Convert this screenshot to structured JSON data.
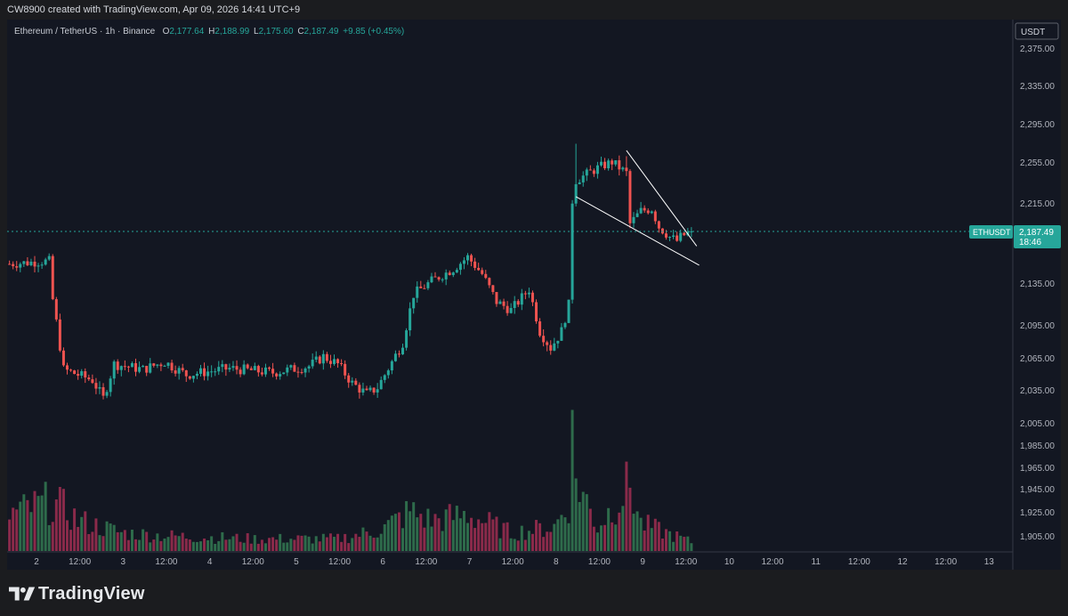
{
  "header": {
    "credit": "CW8900 created with TradingView.com, Apr 09, 2026 14:41 UTC+9"
  },
  "legend": {
    "symbol": "Ethereum / TetherUS · 1h · Binance",
    "open_label": "O",
    "open": "2,177.64",
    "high_label": "H",
    "high": "2,188.99",
    "low_label": "L",
    "low": "2,175.60",
    "close_label": "C",
    "close": "2,187.49",
    "change": "+9.85 (+0.45%)"
  },
  "price_axis": {
    "currency": "USDT",
    "ticks": [
      "2,375.00",
      "2,335.00",
      "2,295.00",
      "2,255.00",
      "2,215.00",
      "2,135.00",
      "2,095.00",
      "2,065.00",
      "2,035.00",
      "2,005.00",
      "1,985.00",
      "1,965.00",
      "1,945.00",
      "1,925.00",
      "1,905.00"
    ]
  },
  "price_label": {
    "symbol": "ETHUSDT",
    "price": "2,187.49",
    "countdown": "18:46"
  },
  "time_axis": {
    "labels": [
      "2",
      "12:00",
      "3",
      "12:00",
      "4",
      "12:00",
      "5",
      "12:00",
      "6",
      "12:00",
      "7",
      "12:00",
      "8",
      "12:00",
      "9",
      "12:00",
      "10",
      "12:00",
      "11",
      "12:00",
      "12",
      "12:00",
      "13"
    ]
  },
  "footer": {
    "brand": "TradingView"
  },
  "colors": {
    "up": "#26a69a",
    "down": "#ef5350",
    "background": "#131722",
    "price_line": "#26a69a",
    "pattern": "#ffffff"
  },
  "chart_data": {
    "type": "candlestick",
    "title": "Ethereum / TetherUS · 1h · Binance",
    "interval": "1h",
    "ylim": [
      1895,
      2385
    ],
    "x_start": "Apr 1 17:00",
    "x_labels": [
      "2",
      "3",
      "4",
      "5",
      "6",
      "7",
      "8",
      "9",
      "10",
      "11",
      "12",
      "13"
    ],
    "ohlc_keypoints": [
      [
        "Apr 1 17:00",
        2155
      ],
      [
        "Apr 2 04:00",
        2158
      ],
      [
        "Apr 2 05:00",
        2120
      ],
      [
        "Apr 2 08:00",
        2055
      ],
      [
        "Apr 2 16:00",
        2045
      ],
      [
        "Apr 2 19:00",
        2028
      ],
      [
        "Apr 2 22:00",
        2060
      ],
      [
        "Apr 3 06:00",
        2055
      ],
      [
        "Apr 3 12:00",
        2062
      ],
      [
        "Apr 3 18:00",
        2050
      ],
      [
        "Apr 4 06:00",
        2056
      ],
      [
        "Apr 4 18:00",
        2052
      ],
      [
        "Apr 5 04:00",
        2058
      ],
      [
        "Apr 5 08:00",
        2067
      ],
      [
        "Apr 5 12:00",
        2060
      ],
      [
        "Apr 5 16:00",
        2042
      ],
      [
        "Apr 5 20:00",
        2032
      ],
      [
        "Apr 5 23:00",
        2038
      ],
      [
        "Apr 6 03:00",
        2062
      ],
      [
        "Apr 6 06:00",
        2080
      ],
      [
        "Apr 6 09:00",
        2125
      ],
      [
        "Apr 6 14:00",
        2138
      ],
      [
        "Apr 6 20:00",
        2150
      ],
      [
        "Apr 7 00:00",
        2162
      ],
      [
        "Apr 7 04:00",
        2145
      ],
      [
        "Apr 7 08:00",
        2118
      ],
      [
        "Apr 7 12:00",
        2110
      ],
      [
        "Apr 7 17:00",
        2130
      ],
      [
        "Apr 7 20:00",
        2090
      ],
      [
        "Apr 7 23:00",
        2075
      ],
      [
        "Apr 8 02:00",
        2090
      ],
      [
        "Apr 8 04:00",
        2115
      ],
      [
        "Apr 8 05:00",
        2218
      ],
      [
        "Apr 8 06:00",
        2238
      ],
      [
        "Apr 8 12:00",
        2250
      ],
      [
        "Apr 8 16:00",
        2256
      ],
      [
        "Apr 8 20:00",
        2245
      ],
      [
        "Apr 8 21:00",
        2195
      ],
      [
        "Apr 9 00:00",
        2208
      ],
      [
        "Apr 9 03:00",
        2210
      ],
      [
        "Apr 9 05:00",
        2192
      ],
      [
        "Apr 9 08:00",
        2182
      ],
      [
        "Apr 9 10:00",
        2178
      ],
      [
        "Apr 9 11:00",
        2182
      ],
      [
        "Apr 9 14:00",
        2187.49
      ]
    ],
    "volume_keypoints": [
      [
        "Apr 1 17:00",
        1.2
      ],
      [
        "Apr 2 04:00",
        1.6
      ],
      [
        "Apr 2 08:00",
        1.4
      ],
      [
        "Apr 2 12:00",
        1.0
      ],
      [
        "Apr 3 00:00",
        0.6
      ],
      [
        "Apr 3 12:00",
        0.5
      ],
      [
        "Apr 4 12:00",
        0.4
      ],
      [
        "Apr 5 12:00",
        0.4
      ],
      [
        "Apr 6 00:00",
        0.7
      ],
      [
        "Apr 6 08:00",
        1.3
      ],
      [
        "Apr 6 14:00",
        1.0
      ],
      [
        "Apr 7 00:00",
        1.2
      ],
      [
        "Apr 7 12:00",
        0.6
      ],
      [
        "Apr 8 00:00",
        0.8
      ],
      [
        "Apr 8 04:00",
        1.6
      ],
      [
        "Apr 8 05:00",
        3.7
      ],
      [
        "Apr 8 06:00",
        2.4
      ],
      [
        "Apr 8 12:00",
        0.8
      ],
      [
        "Apr 8 21:00",
        2.2
      ],
      [
        "Apr 9 00:00",
        0.9
      ],
      [
        "Apr 9 14:00",
        0.3
      ]
    ],
    "falling_wedge": {
      "upper": [
        [
          "Apr 8 20:00",
          2268
        ],
        [
          "Apr 9 14:00",
          2180
        ]
      ],
      "lower": [
        [
          "Apr 8 06:00",
          2222
        ],
        [
          "Apr 9 14:00",
          2158
        ]
      ]
    }
  }
}
